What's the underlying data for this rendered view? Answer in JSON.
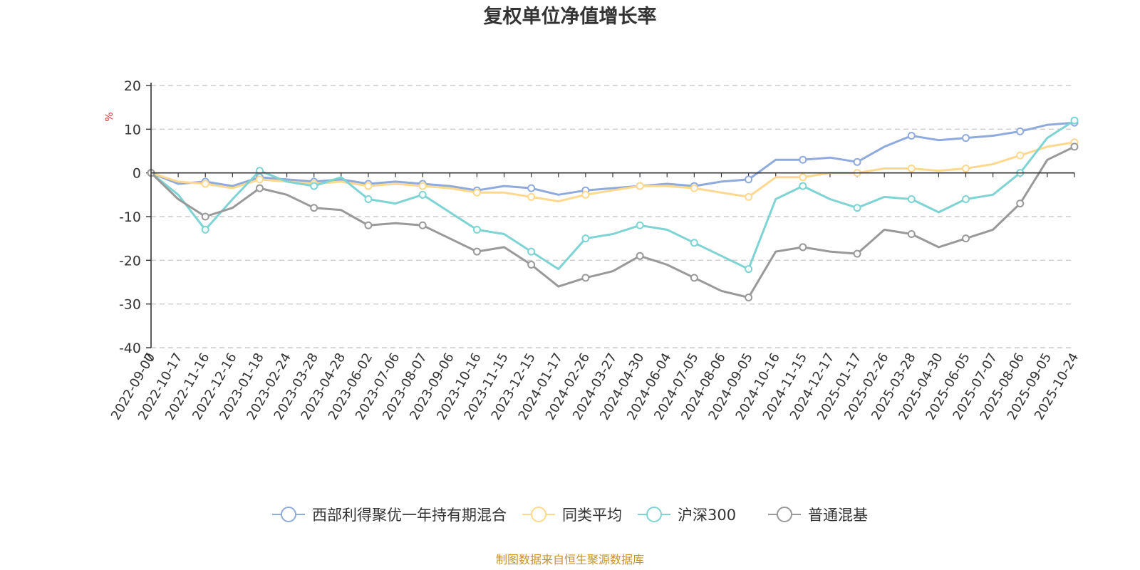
{
  "chart_data": {
    "type": "line",
    "title": "复权单位净值增长率",
    "ylabel": "%",
    "xlabel": "",
    "ylim": [
      -40,
      20
    ],
    "yticks": [
      "20",
      "10",
      "0",
      "-10",
      "-20",
      "-30",
      "-40"
    ],
    "x_start_label": "0",
    "categories": [
      "2022-09-07",
      "2022-10-17",
      "2022-11-16",
      "2022-12-16",
      "2023-01-18",
      "2023-02-24",
      "2023-03-28",
      "2023-04-28",
      "2023-06-02",
      "2023-07-06",
      "2023-08-07",
      "2023-09-06",
      "2023-10-16",
      "2023-11-15",
      "2023-12-15",
      "2024-01-17",
      "2024-02-26",
      "2024-03-27",
      "2024-04-30",
      "2024-06-04",
      "2024-07-05",
      "2024-08-06",
      "2024-09-05",
      "2024-10-16",
      "2024-11-15",
      "2024-12-17",
      "2025-01-17",
      "2025-02-26",
      "2025-03-28",
      "2025-04-30",
      "2025-06-05",
      "2025-07-07",
      "2025-08-06",
      "2025-09-05",
      "2025-10-24"
    ],
    "series": [
      {
        "name": "西部利得聚优一年持有期混合",
        "color": "#8faadc",
        "values": [
          0,
          -2.5,
          -2.0,
          -3.0,
          -1.0,
          -1.5,
          -2.0,
          -1.5,
          -2.5,
          -2.0,
          -2.5,
          -3.0,
          -4.0,
          -3.0,
          -3.5,
          -5.0,
          -4.0,
          -3.5,
          -3.0,
          -2.5,
          -3.0,
          -2.0,
          -1.5,
          3.0,
          3.0,
          3.5,
          2.5,
          6.0,
          8.5,
          7.5,
          8.0,
          8.5,
          9.5,
          11.0,
          11.5
        ]
      },
      {
        "name": "同类平均",
        "color": "#ffd88f",
        "values": [
          0,
          -2.0,
          -2.5,
          -3.5,
          -1.5,
          -2.0,
          -2.5,
          -2.0,
          -3.0,
          -2.5,
          -3.0,
          -3.5,
          -4.5,
          -4.5,
          -5.5,
          -6.5,
          -5.0,
          -4.0,
          -3.0,
          -3.0,
          -3.5,
          -4.5,
          -5.5,
          -1.0,
          -1.0,
          0.0,
          0.0,
          1.0,
          1.0,
          0.5,
          1.0,
          2.0,
          4.0,
          6.0,
          7.0
        ]
      },
      {
        "name": "沪深300",
        "color": "#7ed3d3",
        "values": [
          0,
          -5.0,
          -13.0,
          -6.0,
          0.5,
          -2.0,
          -3.0,
          -1.0,
          -6.0,
          -7.0,
          -5.0,
          -9.0,
          -13.0,
          -14.0,
          -18.0,
          -22.0,
          -15.0,
          -14.0,
          -12.0,
          -13.0,
          -16.0,
          -19.0,
          -22.0,
          -6.0,
          -3.0,
          -6.0,
          -8.0,
          -5.5,
          -6.0,
          -9.0,
          -6.0,
          -5.0,
          0.0,
          8.0,
          12.0
        ]
      },
      {
        "name": "普通混基",
        "color": "#999999",
        "values": [
          0,
          -6.0,
          -10.0,
          -8.0,
          -3.5,
          -5.0,
          -8.0,
          -8.5,
          -12.0,
          -11.5,
          -12.0,
          -15.0,
          -18.0,
          -17.0,
          -21.0,
          -26.0,
          -24.0,
          -22.5,
          -19.0,
          -21.0,
          -24.0,
          -27.0,
          -28.5,
          -18.0,
          -17.0,
          -18.0,
          -18.5,
          -13.0,
          -14.0,
          -17.0,
          -15.0,
          -13.0,
          -7.0,
          3.0,
          6.0
        ]
      }
    ],
    "legend_position": "bottom-center",
    "grid": true,
    "source": "制图数据来自恒生聚源数据库",
    "source_color": "#c8922a",
    "unit_color": "#e03030"
  }
}
